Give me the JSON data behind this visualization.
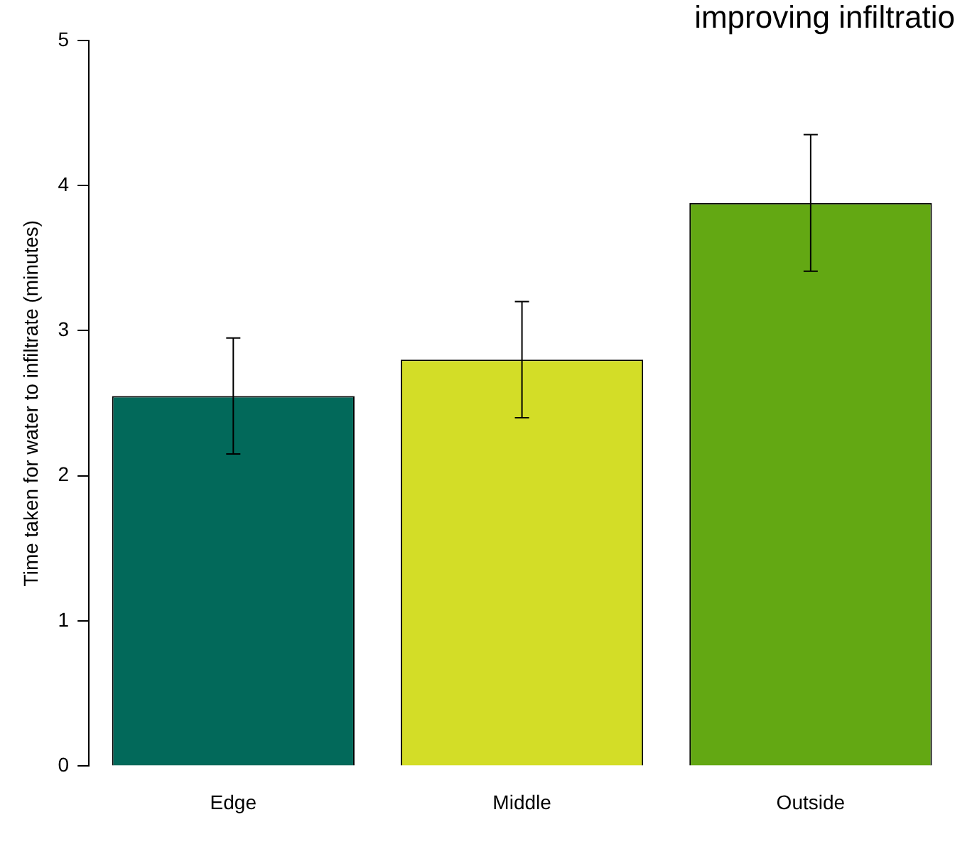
{
  "chart_data": {
    "type": "bar",
    "title": "improving infiltratio",
    "ylabel": "Time taken for water to infiltrate (minutes)",
    "categories": [
      "Edge",
      "Middle",
      "Outside"
    ],
    "values": [
      2.55,
      2.8,
      3.88
    ],
    "colors": [
      "#02695a",
      "#d3dd27",
      "#63a813"
    ],
    "errors": [
      0.4,
      0.4,
      0.47
    ],
    "ylim": [
      0,
      5
    ],
    "yticks": [
      0,
      1,
      2,
      3,
      4,
      5
    ],
    "grid": false
  }
}
